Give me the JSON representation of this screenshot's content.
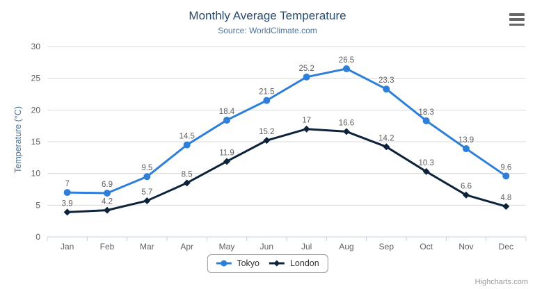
{
  "chart_data": {
    "type": "line",
    "title": "Monthly Average Temperature",
    "subtitle": "Source: WorldClimate.com",
    "categories": [
      "Jan",
      "Feb",
      "Mar",
      "Apr",
      "May",
      "Jun",
      "Jul",
      "Aug",
      "Sep",
      "Oct",
      "Nov",
      "Dec"
    ],
    "series": [
      {
        "name": "Tokyo",
        "color": "#2f7ed8",
        "marker": "circle",
        "values": [
          7,
          6.9,
          9.5,
          14.5,
          18.4,
          21.5,
          25.2,
          26.5,
          23.3,
          18.3,
          13.9,
          9.6
        ]
      },
      {
        "name": "London",
        "color": "#0d233a",
        "marker": "diamond",
        "values": [
          3.9,
          4.2,
          5.7,
          8.5,
          11.9,
          15.2,
          17,
          16.6,
          14.2,
          10.3,
          6.6,
          4.8
        ]
      }
    ],
    "xlabel": "",
    "ylabel": "Temperature (°C)",
    "ylim": [
      0,
      30
    ],
    "ytick_step": 5,
    "grid": true,
    "data_labels": true,
    "legend_position": "bottom-center"
  },
  "credits": {
    "label": "Highcharts.com"
  },
  "colors": {
    "title": "#274b6d",
    "subtitle": "#4d759e",
    "axis_title": "#4d759e",
    "axis_labels": "#606060",
    "data_labels": "#606060",
    "gridline": "#d8d8d8",
    "axis_line": "#c0d0e0",
    "legend_text": "#333333",
    "legend_border": "#999999",
    "credits_text": "#999999",
    "menu_icon": "#666666"
  },
  "icons": {
    "menu": "hamburger-icon"
  }
}
